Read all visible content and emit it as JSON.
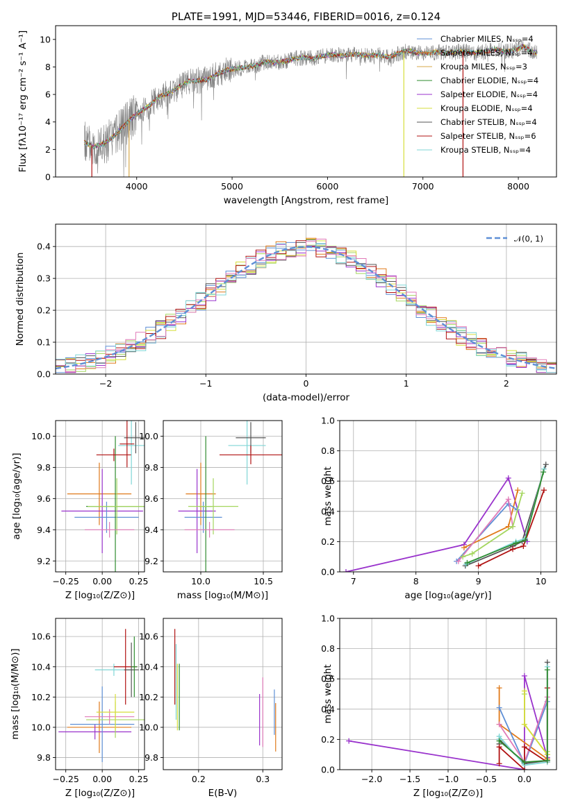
{
  "colors": {
    "chabrier_miles": "#5e8fd6",
    "salpeter_miles": "#e07a1a",
    "kroupa_miles": "#d7a84a",
    "chabrier_elodie": "#2e8b2e",
    "salpeter_elodie": "#9932cc",
    "kroupa_elodie": "#d6de3a",
    "chabrier_stelib": "#555555",
    "salpeter_stelib": "#b01212",
    "kroupa_stelib": "#7fd6d6",
    "pink": "#e07ab8",
    "lightgreen": "#a4d65e",
    "normal_curve": "#5e8fd6",
    "spectrum": "#808080"
  },
  "chart_data": [
    {
      "id": "spectrum",
      "type": "line",
      "title": "PLATE=1991, MJD=53446, FIBERID=0016, z=0.124",
      "xlabel": "wavelength [Angstrom, rest frame]",
      "ylabel": "Flux [fλ10⁻¹⁷ erg cm⁻² s⁻¹ A⁻¹]",
      "xlim": [
        3150,
        8400
      ],
      "ylim": [
        0,
        11
      ],
      "xticks": [
        4000,
        5000,
        6000,
        7000,
        8000
      ],
      "yticks": [
        0,
        2,
        4,
        6,
        8,
        10
      ],
      "grid": false,
      "legend_position": "top-right",
      "continuum": [
        [
          3450,
          2.5
        ],
        [
          3550,
          2.2
        ],
        [
          3650,
          2.4
        ],
        [
          3750,
          2.9
        ],
        [
          3850,
          3.6
        ],
        [
          3950,
          4.3
        ],
        [
          4050,
          4.8
        ],
        [
          4150,
          5.3
        ],
        [
          4250,
          5.9
        ],
        [
          4350,
          6.1
        ],
        [
          4450,
          6.6
        ],
        [
          4550,
          7.0
        ],
        [
          4650,
          7.0
        ],
        [
          4750,
          7.1
        ],
        [
          4850,
          7.5
        ],
        [
          4950,
          7.8
        ],
        [
          5050,
          7.9
        ],
        [
          5150,
          8.0
        ],
        [
          5250,
          8.1
        ],
        [
          5350,
          8.4
        ],
        [
          5450,
          8.3
        ],
        [
          5550,
          8.4
        ],
        [
          5650,
          8.6
        ],
        [
          5750,
          8.7
        ],
        [
          5850,
          8.6
        ],
        [
          5950,
          8.8
        ],
        [
          6050,
          8.9
        ],
        [
          6150,
          8.8
        ],
        [
          6250,
          8.9
        ],
        [
          6350,
          8.9
        ],
        [
          6450,
          8.8
        ],
        [
          6550,
          8.9
        ],
        [
          6650,
          8.7
        ],
        [
          6750,
          9.0
        ],
        [
          6850,
          9.2
        ],
        [
          6950,
          9.0
        ],
        [
          7050,
          9.0
        ],
        [
          7150,
          9.1
        ],
        [
          7250,
          9.0
        ],
        [
          7350,
          9.1
        ],
        [
          7450,
          9.1
        ],
        [
          7550,
          9.0
        ],
        [
          7650,
          9.1
        ],
        [
          7750,
          9.3
        ],
        [
          7850,
          9.1
        ],
        [
          7950,
          9.2
        ],
        [
          8050,
          9.5
        ],
        [
          8150,
          9.1
        ],
        [
          8200,
          9.0
        ]
      ],
      "series": [
        {
          "name": "Chabrier MILES, Nₛₛₚ=4",
          "color_key": "chabrier_miles",
          "style": "line"
        },
        {
          "name": "Salpeter MILES, Nₛₛₚ=4",
          "color_key": "salpeter_miles",
          "style": "line"
        },
        {
          "name": "Kroupa MILES, Nₛₛₚ=3",
          "color_key": "kroupa_miles",
          "style": "line"
        },
        {
          "name": "Chabrier ELODIE, Nₛₛₚ=4",
          "color_key": "chabrier_elodie",
          "style": "line"
        },
        {
          "name": "Salpeter ELODIE, Nₛₛₚ=4",
          "color_key": "salpeter_elodie",
          "style": "line"
        },
        {
          "name": "Kroupa ELODIE, Nₛₛₚ=4",
          "color_key": "kroupa_elodie",
          "style": "line"
        },
        {
          "name": "Chabrier STELIB, Nₛₛₚ=4",
          "color_key": "chabrier_stelib",
          "style": "line"
        },
        {
          "name": "Salpeter STELIB, Nₛₛₚ=6",
          "color_key": "salpeter_stelib",
          "style": "line"
        },
        {
          "name": "Kroupa STELIB, Nₛₛₚ=4",
          "color_key": "kroupa_stelib",
          "style": "line"
        }
      ],
      "drops": [
        {
          "x": 3530,
          "color_key": "salpeter_stelib"
        },
        {
          "x": 3920,
          "color_key": "kroupa_miles"
        },
        {
          "x": 6800,
          "color_key": "kroupa_elodie"
        },
        {
          "x": 7420,
          "color_key": "salpeter_stelib"
        }
      ]
    },
    {
      "id": "residuals",
      "type": "bar",
      "xlabel": "(data-model)/error",
      "ylabel": "Normed distribution",
      "xlim": [
        -2.5,
        2.5
      ],
      "ylim": [
        0,
        0.47
      ],
      "xticks": [
        -2,
        -1,
        0,
        1,
        2
      ],
      "yticks": [
        0.0,
        0.1,
        0.2,
        0.3,
        0.4
      ],
      "bin_width": 0.1,
      "grid": true,
      "legend_position": "top-right",
      "legend": "𝒩(0, 1)",
      "seeds": [
        3,
        7,
        11,
        13,
        17,
        19,
        23,
        29,
        31
      ],
      "series_colors": [
        "chabrier_miles",
        "salpeter_miles",
        "lightgreen",
        "kroupa_elodie",
        "salpeter_elodie",
        "chabrier_stelib",
        "salpeter_stelib",
        "kroupa_stelib",
        "pink"
      ]
    },
    {
      "id": "age_vs_Z",
      "type": "scatter",
      "xlabel": "Z [log₁₀(Z/Z⊙)]",
      "ylabel": "age  [log₁₀(age/yr)]",
      "xlim": [
        -0.32,
        0.29
      ],
      "ylim": [
        9.13,
        10.1
      ],
      "xticks": [
        -0.25,
        0.0,
        0.25
      ],
      "xtick_labels": [
        "−0.25",
        "0.00",
        "0.25"
      ],
      "yticks": [
        9.2,
        9.4,
        9.6,
        9.8,
        10.0
      ],
      "grid": true,
      "points": [
        {
          "x": -0.02,
          "y": 9.63,
          "xerr": 0.22,
          "yerr": 0.2,
          "color_key": "salpeter_miles"
        },
        {
          "x": 0.0,
          "y": 9.52,
          "xerr": 0.28,
          "yerr": 0.27,
          "color_key": "salpeter_elodie"
        },
        {
          "x": 0.03,
          "y": 9.48,
          "xerr": 0.22,
          "yerr": 0.1,
          "color_key": "chabrier_miles"
        },
        {
          "x": 0.09,
          "y": 9.55,
          "xerr": 0.2,
          "yerr": 0.45,
          "color_key": "chabrier_elodie"
        },
        {
          "x": 0.1,
          "y": 9.55,
          "xerr": 0.2,
          "yerr": 0.18,
          "color_key": "lightgreen"
        },
        {
          "x": 0.05,
          "y": 9.4,
          "xerr": 0.17,
          "yerr": 0.05,
          "color_key": "pink"
        },
        {
          "x": 0.08,
          "y": 9.88,
          "xerr": 0.12,
          "yerr": 0.04,
          "color_key": "salpeter_stelib"
        },
        {
          "x": 0.2,
          "y": 9.94,
          "xerr": 0.09,
          "yerr": 0.25,
          "color_key": "kroupa_stelib"
        },
        {
          "x": 0.23,
          "y": 9.99,
          "xerr": 0.08,
          "yerr": 0.1,
          "color_key": "chabrier_stelib"
        },
        {
          "x": 0.17,
          "y": 9.95,
          "xerr": 0.05,
          "yerr": 0.15,
          "color_key": "salpeter_stelib"
        }
      ]
    },
    {
      "id": "age_vs_mass",
      "type": "scatter",
      "xlabel": "mass [log₁₀(M/M⊙)]",
      "xlim": [
        9.7,
        10.65
      ],
      "ylim": [
        9.13,
        10.1
      ],
      "xticks": [
        10.0,
        10.5
      ],
      "yticks": [
        9.2,
        9.4,
        9.6,
        9.8,
        10.0
      ],
      "grid": true,
      "points": [
        {
          "x": 10.0,
          "y": 9.63,
          "xerr": 0.12,
          "yerr": 0.2,
          "color_key": "salpeter_miles"
        },
        {
          "x": 9.97,
          "y": 9.52,
          "xerr": 0.15,
          "yerr": 0.27,
          "color_key": "salpeter_elodie"
        },
        {
          "x": 10.02,
          "y": 9.48,
          "xerr": 0.15,
          "yerr": 0.1,
          "color_key": "chabrier_miles"
        },
        {
          "x": 10.04,
          "y": 9.55,
          "xerr": 0.05,
          "yerr": 0.45,
          "color_key": "chabrier_elodie"
        },
        {
          "x": 10.1,
          "y": 9.55,
          "xerr": 0.2,
          "yerr": 0.18,
          "color_key": "lightgreen"
        },
        {
          "x": 10.07,
          "y": 9.4,
          "xerr": 0.2,
          "yerr": 0.05,
          "color_key": "pink"
        },
        {
          "x": 10.37,
          "y": 9.94,
          "xerr": 0.15,
          "yerr": 0.25,
          "color_key": "kroupa_stelib"
        },
        {
          "x": 10.4,
          "y": 9.99,
          "xerr": 0.12,
          "yerr": 0.1,
          "color_key": "chabrier_stelib"
        },
        {
          "x": 10.4,
          "y": 9.88,
          "xerr": 0.25,
          "yerr": 0.06,
          "color_key": "salpeter_stelib"
        }
      ]
    },
    {
      "id": "massweight_vs_age",
      "type": "line",
      "xlabel": "age  [log₁₀(age/yr)]",
      "ylabel": "mass weight",
      "xlim": [
        6.78,
        10.25
      ],
      "ylim": [
        0,
        1.0
      ],
      "xticks": [
        7,
        8,
        9,
        10
      ],
      "yticks": [
        0.0,
        0.2,
        0.4,
        0.6,
        0.8,
        1.0
      ],
      "grid": true,
      "series": [
        {
          "color_key": "salpeter_elodie",
          "x": [
            6.88,
            8.77,
            9.48,
            9.78
          ],
          "y": [
            0.0,
            0.18,
            0.62,
            0.2
          ]
        },
        {
          "color_key": "salpeter_miles",
          "x": [
            8.77,
            9.48,
            9.63
          ],
          "y": [
            0.16,
            0.3,
            0.54
          ]
        },
        {
          "color_key": "chabrier_miles",
          "x": [
            8.65,
            9.48,
            9.62
          ],
          "y": [
            0.07,
            0.45,
            0.41
          ]
        },
        {
          "color_key": "pink",
          "x": [
            8.68,
            9.48,
            9.55
          ],
          "y": [
            0.07,
            0.48,
            0.3
          ]
        },
        {
          "color_key": "lightgreen",
          "x": [
            8.75,
            8.9,
            9.55,
            9.7
          ],
          "y": [
            0.1,
            0.12,
            0.3,
            0.52
          ]
        },
        {
          "color_key": "chabrier_stelib",
          "x": [
            8.79,
            9.55,
            9.7,
            10.08
          ],
          "y": [
            0.04,
            0.17,
            0.2,
            0.71
          ]
        },
        {
          "color_key": "salpeter_stelib",
          "x": [
            9.0,
            9.55,
            9.72,
            10.05
          ],
          "y": [
            0.04,
            0.15,
            0.17,
            0.54
          ]
        },
        {
          "color_key": "kroupa_stelib",
          "x": [
            8.8,
            9.6,
            9.75,
            10.05
          ],
          "y": [
            0.05,
            0.2,
            0.22,
            0.68
          ]
        },
        {
          "color_key": "chabrier_elodie",
          "x": [
            8.82,
            9.6,
            9.75,
            10.04
          ],
          "y": [
            0.06,
            0.19,
            0.21,
            0.66
          ]
        }
      ]
    },
    {
      "id": "mass_vs_Z",
      "type": "scatter",
      "xlabel": "Z [log₁₀(Z/Z⊙)]",
      "ylabel": "mass [log₁₀(M/M⊙)]",
      "xlim": [
        -0.32,
        0.29
      ],
      "ylim": [
        9.72,
        10.72
      ],
      "xticks": [
        -0.25,
        0.0,
        0.25
      ],
      "xtick_labels": [
        "−0.25",
        "0.00",
        "0.25"
      ],
      "yticks": [
        9.8,
        10.0,
        10.2,
        10.4,
        10.6
      ],
      "grid": true,
      "points": [
        {
          "x": -0.02,
          "y": 10.0,
          "xerr": 0.22,
          "yerr": 0.17,
          "color_key": "salpeter_miles"
        },
        {
          "x": -0.05,
          "y": 9.97,
          "xerr": 0.25,
          "yerr": 0.05,
          "color_key": "salpeter_elodie"
        },
        {
          "x": 0.0,
          "y": 10.02,
          "xerr": 0.22,
          "yerr": 0.25,
          "color_key": "chabrier_miles"
        },
        {
          "x": 0.09,
          "y": 10.05,
          "xerr": 0.2,
          "yerr": 0.12,
          "color_key": "lightgreen"
        },
        {
          "x": 0.05,
          "y": 10.07,
          "xerr": 0.17,
          "yerr": 0.05,
          "color_key": "pink"
        },
        {
          "x": 0.09,
          "y": 10.1,
          "xerr": 0.13,
          "yerr": 0.12,
          "color_key": "kroupa_elodie"
        },
        {
          "x": 0.08,
          "y": 10.38,
          "xerr": 0.13,
          "yerr": 0.04,
          "color_key": "kroupa_stelib"
        },
        {
          "x": 0.16,
          "y": 10.4,
          "xerr": 0.08,
          "yerr": 0.25,
          "color_key": "salpeter_stelib"
        },
        {
          "x": 0.2,
          "y": 10.38,
          "xerr": 0.05,
          "yerr": 0.18,
          "color_key": "chabrier_stelib"
        },
        {
          "x": 0.22,
          "y": 10.4,
          "xerr": 0.02,
          "yerr": 0.2,
          "color_key": "chabrier_elodie"
        }
      ]
    },
    {
      "id": "mass_vs_EBV",
      "type": "scatter",
      "xlabel": "E(B-V)",
      "xlim": [
        0.145,
        0.33
      ],
      "ylim": [
        9.72,
        10.72
      ],
      "xticks": [
        0.2,
        0.3
      ],
      "yticks": [
        9.8,
        10.0,
        10.2,
        10.4,
        10.6
      ],
      "grid": true,
      "points": [
        {
          "x": 0.163,
          "y": 10.4,
          "yerr": 0.25,
          "color_key": "salpeter_stelib"
        },
        {
          "x": 0.165,
          "y": 10.3,
          "yerr": 0.25,
          "color_key": "kroupa_stelib"
        },
        {
          "x": 0.167,
          "y": 10.2,
          "yerr": 0.22,
          "color_key": "kroupa_elodie"
        },
        {
          "x": 0.17,
          "y": 10.2,
          "yerr": 0.22,
          "color_key": "chabrier_elodie"
        },
        {
          "x": 0.295,
          "y": 10.05,
          "yerr": 0.17,
          "color_key": "salpeter_elodie"
        },
        {
          "x": 0.3,
          "y": 10.1,
          "yerr": 0.23,
          "color_key": "pink"
        },
        {
          "x": 0.318,
          "y": 10.1,
          "yerr": 0.15,
          "color_key": "chabrier_miles"
        },
        {
          "x": 0.32,
          "y": 10.0,
          "yerr": 0.16,
          "color_key": "salpeter_miles"
        }
      ]
    },
    {
      "id": "massweight_vs_Z",
      "type": "line",
      "xlabel": "Z [log₁₀(Z/Z⊙)]",
      "ylabel": "mass weight",
      "xlim": [
        -2.42,
        0.42
      ],
      "ylim": [
        0,
        1.0
      ],
      "xticks": [
        -2.0,
        -1.5,
        -1.0,
        -0.5,
        0.0
      ],
      "xtick_labels": [
        "−2.0",
        "−1.5",
        "−1.0",
        "−0.5",
        "0.0"
      ],
      "yticks": [
        0.0,
        0.2,
        0.4,
        0.6,
        0.8,
        1.0
      ],
      "grid": true,
      "series": [
        {
          "color_key": "salpeter_elodie",
          "x": [
            -2.3,
            0.0,
            0.0,
            0.3
          ],
          "y": [
            0.19,
            0.0,
            0.62,
            0.08
          ]
        },
        {
          "color_key": "salpeter_miles",
          "x": [
            -0.33,
            -0.33,
            0.3
          ],
          "y": [
            0.54,
            0.3,
            0.07
          ]
        },
        {
          "color_key": "chabrier_miles",
          "x": [
            -0.33,
            0.0,
            0.3
          ],
          "y": [
            0.41,
            0.04,
            0.45
          ]
        },
        {
          "color_key": "pink",
          "x": [
            -0.33,
            0.0,
            0.3
          ],
          "y": [
            0.3,
            0.05,
            0.48
          ]
        },
        {
          "color_key": "lightgreen",
          "x": [
            0.0,
            0.0,
            0.3,
            0.3
          ],
          "y": [
            0.5,
            0.3,
            0.1,
            0.12
          ]
        },
        {
          "color_key": "kroupa_elodie",
          "x": [
            0.0,
            0.0,
            0.3
          ],
          "y": [
            0.52,
            0.3,
            0.1
          ]
        },
        {
          "color_key": "chabrier_stelib",
          "x": [
            -0.33,
            -0.33,
            0.0,
            0.3,
            0.3
          ],
          "y": [
            0.17,
            0.2,
            0.04,
            0.06,
            0.71
          ]
        },
        {
          "color_key": "salpeter_stelib",
          "x": [
            -0.33,
            -0.33,
            0.0,
            0.0,
            0.3,
            0.3
          ],
          "y": [
            0.04,
            0.15,
            0.0,
            0.15,
            0.05,
            0.54
          ]
        },
        {
          "color_key": "kroupa_stelib",
          "x": [
            -0.33,
            -0.33,
            0.0,
            0.3,
            0.3
          ],
          "y": [
            0.2,
            0.22,
            0.03,
            0.05,
            0.68
          ]
        },
        {
          "color_key": "chabrier_elodie",
          "x": [
            -0.33,
            0.0,
            0.3,
            0.3
          ],
          "y": [
            0.19,
            0.05,
            0.06,
            0.66
          ]
        }
      ]
    }
  ]
}
